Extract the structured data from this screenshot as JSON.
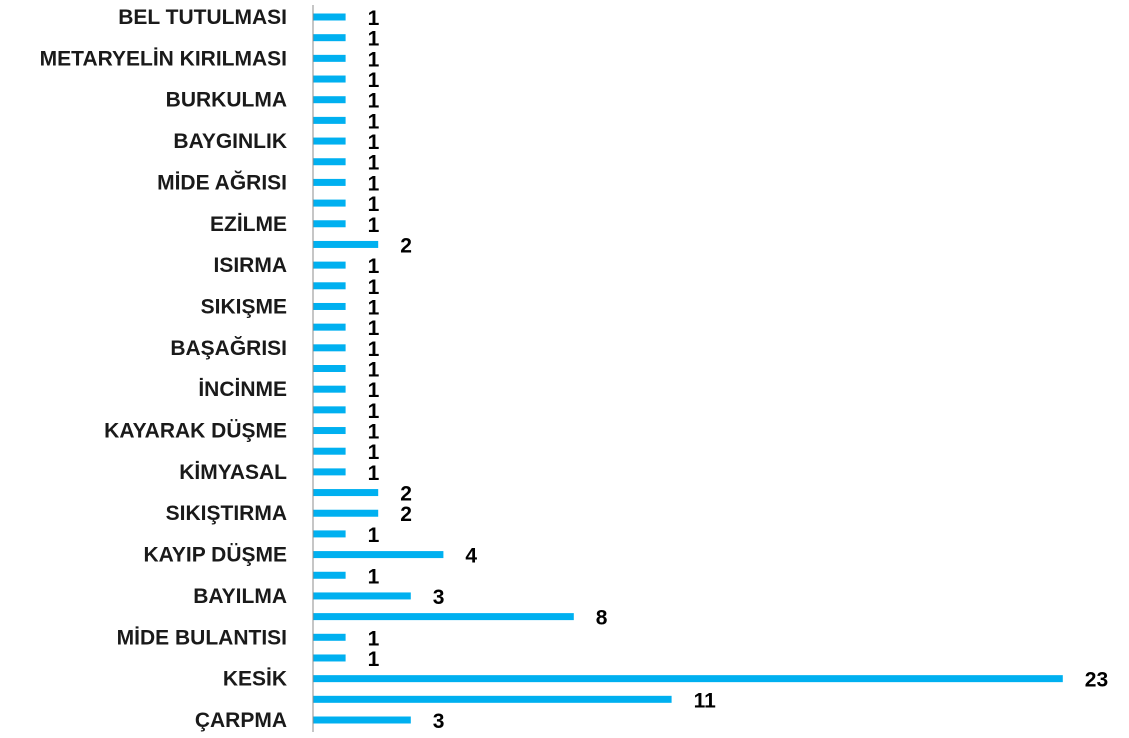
{
  "chart_data": {
    "type": "bar",
    "orientation": "horizontal",
    "title": "",
    "xlabel": "",
    "ylabel": "",
    "bar_color": "#00B0F0",
    "grid": false,
    "legend": "none",
    "xlim": [
      0,
      23
    ],
    "bars": [
      {
        "label": "BEL TUTULMASI",
        "value": 1
      },
      {
        "label": "",
        "value": 1
      },
      {
        "label": "METARYELİN KIRILMASI",
        "value": 1
      },
      {
        "label": "",
        "value": 1
      },
      {
        "label": "BURKULMA",
        "value": 1
      },
      {
        "label": "",
        "value": 1
      },
      {
        "label": "BAYGINLIK",
        "value": 1
      },
      {
        "label": "",
        "value": 1
      },
      {
        "label": "MİDE AĞRISI",
        "value": 1
      },
      {
        "label": "",
        "value": 1
      },
      {
        "label": "EZİLME",
        "value": 1
      },
      {
        "label": "",
        "value": 2
      },
      {
        "label": "ISIRMA",
        "value": 1
      },
      {
        "label": "",
        "value": 1
      },
      {
        "label": "SIKIŞME",
        "value": 1
      },
      {
        "label": "",
        "value": 1
      },
      {
        "label": "BAŞAĞRISI",
        "value": 1
      },
      {
        "label": "",
        "value": 1
      },
      {
        "label": "İNCİNME",
        "value": 1
      },
      {
        "label": "",
        "value": 1
      },
      {
        "label": "KAYARAK DÜŞME",
        "value": 1
      },
      {
        "label": "",
        "value": 1
      },
      {
        "label": "KİMYASAL",
        "value": 1
      },
      {
        "label": "",
        "value": 2
      },
      {
        "label": "SIKIŞTIRMA",
        "value": 2
      },
      {
        "label": "",
        "value": 1
      },
      {
        "label": "KAYIP DÜŞME",
        "value": 4
      },
      {
        "label": "",
        "value": 1
      },
      {
        "label": "BAYILMA",
        "value": 3
      },
      {
        "label": "",
        "value": 8
      },
      {
        "label": "MİDE BULANTISI",
        "value": 1
      },
      {
        "label": "",
        "value": 1
      },
      {
        "label": "KESİK",
        "value": 23
      },
      {
        "label": "",
        "value": 11
      },
      {
        "label": "ÇARPMA",
        "value": 3
      }
    ]
  }
}
